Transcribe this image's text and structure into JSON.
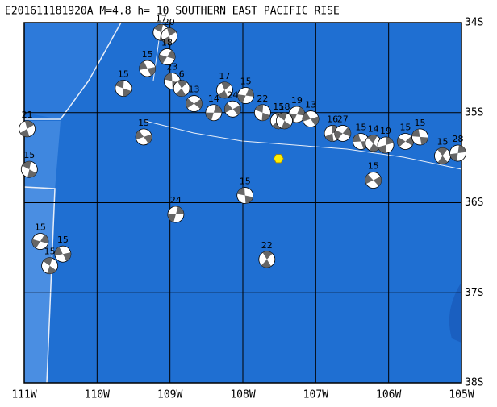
{
  "map": {
    "title": "E201611181920A  M=4.8  h= 10  SOUTHERN EAST PACIFIC RISE",
    "lon_ticks": [
      {
        "value": -111,
        "label": "111W"
      },
      {
        "value": -110,
        "label": "110W"
      },
      {
        "value": -109,
        "label": "109W"
      },
      {
        "value": -108,
        "label": "108W"
      },
      {
        "value": -107,
        "label": "107W"
      },
      {
        "value": -106,
        "label": "106W"
      },
      {
        "value": -105,
        "label": "105W"
      }
    ],
    "lat_ticks": [
      {
        "value": -34,
        "label": "34S"
      },
      {
        "value": -35,
        "label": "35S"
      },
      {
        "value": -36,
        "label": "36S"
      },
      {
        "value": -37,
        "label": "37S"
      },
      {
        "value": -38,
        "label": "38S"
      }
    ],
    "epicenter": {
      "lon": -107.51,
      "lat": -35.51,
      "color": "#ffee00"
    },
    "events": [
      {
        "lon": -107.97,
        "lat": -35.92,
        "label": "15"
      },
      {
        "lon": -107.67,
        "lat": -36.63,
        "label": "22"
      },
      {
        "lon": -108.92,
        "lat": -36.13,
        "label": "24"
      },
      {
        "lon": -106.21,
        "lat": -35.75,
        "label": "15"
      },
      {
        "lon": -109.64,
        "lat": -34.73,
        "label": "15"
      },
      {
        "lon": -108.25,
        "lat": -34.75,
        "label": "17"
      },
      {
        "lon": -107.96,
        "lat": -34.81,
        "label": "15"
      },
      {
        "lon": -109.36,
        "lat": -35.27,
        "label": "15"
      },
      {
        "lon": -110.93,
        "lat": -35.63,
        "label": "15"
      },
      {
        "lon": -110.96,
        "lat": -35.18,
        "label": "21"
      },
      {
        "lon": -110.78,
        "lat": -36.43,
        "label": "15"
      },
      {
        "lon": -110.47,
        "lat": -36.57,
        "label": "15"
      },
      {
        "lon": -110.65,
        "lat": -36.7,
        "label": "15"
      },
      {
        "lon": -106.77,
        "lat": -35.23,
        "label": "16"
      },
      {
        "lon": -106.63,
        "lat": -35.23,
        "label": "27"
      },
      {
        "lon": -106.38,
        "lat": -35.32,
        "label": "15"
      },
      {
        "lon": -106.21,
        "lat": -35.34,
        "label": "14"
      },
      {
        "lon": -106.04,
        "lat": -35.36,
        "label": "19"
      },
      {
        "lon": -105.77,
        "lat": -35.32,
        "label": "15"
      },
      {
        "lon": -105.57,
        "lat": -35.27,
        "label": "15"
      },
      {
        "lon": -105.26,
        "lat": -35.48,
        "label": "15"
      },
      {
        "lon": -105.05,
        "lat": -35.45,
        "label": "28"
      },
      {
        "lon": -108.67,
        "lat": -34.9,
        "label": "13"
      },
      {
        "lon": -108.97,
        "lat": -34.65,
        "label": "23"
      },
      {
        "lon": -108.84,
        "lat": -34.73,
        "label": "6"
      },
      {
        "lon": -108.4,
        "lat": -35.0,
        "label": "14"
      },
      {
        "lon": -108.14,
        "lat": -34.96,
        "label": "24"
      },
      {
        "lon": -107.73,
        "lat": -35.0,
        "label": "22"
      },
      {
        "lon": -107.51,
        "lat": -35.09,
        "label": "15"
      },
      {
        "lon": -107.26,
        "lat": -35.02,
        "label": "19"
      },
      {
        "lon": -107.07,
        "lat": -35.07,
        "label": "13"
      },
      {
        "lon": -109.12,
        "lat": -34.11,
        "label": "17"
      },
      {
        "lon": -109.01,
        "lat": -34.15,
        "label": "20"
      },
      {
        "lon": -109.04,
        "lat": -34.38,
        "label": "18"
      },
      {
        "lon": -109.31,
        "lat": -34.51,
        "label": "15"
      },
      {
        "lon": -107.43,
        "lat": -35.09,
        "label": "18"
      }
    ]
  }
}
